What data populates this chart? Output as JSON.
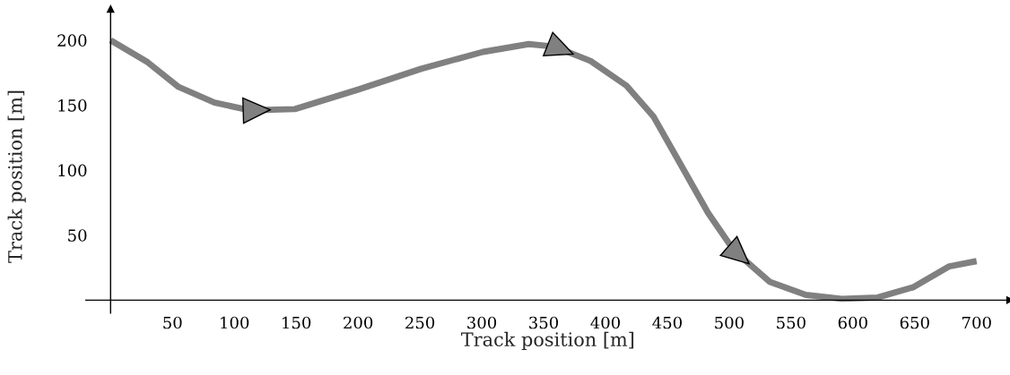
{
  "chart_data": {
    "type": "line",
    "xlabel": "Track position [m]",
    "ylabel": "Track position [m]",
    "x": [
      0,
      30,
      55,
      84,
      113,
      149,
      200,
      251,
      301,
      338,
      359,
      388,
      417,
      439,
      461,
      483,
      504,
      533,
      562,
      591,
      620,
      649,
      678,
      700
    ],
    "series": [
      {
        "color": "#808080",
        "values": [
          200,
          183,
          164,
          152,
          146,
          147,
          162,
          178,
          191,
          197,
          195,
          184,
          165,
          141,
          104,
          67,
          38,
          14,
          4,
          1,
          2,
          10,
          26,
          30
        ]
      }
    ],
    "xlim": [
      -20,
      727
    ],
    "ylim": [
      -10,
      224
    ],
    "xticks": [
      50,
      100,
      150,
      200,
      250,
      300,
      350,
      400,
      450,
      500,
      550,
      600,
      650,
      700
    ],
    "yticks": [
      50,
      100,
      150,
      200
    ],
    "grid": false,
    "legend": false,
    "marker": "none",
    "line_style": "solid"
  }
}
